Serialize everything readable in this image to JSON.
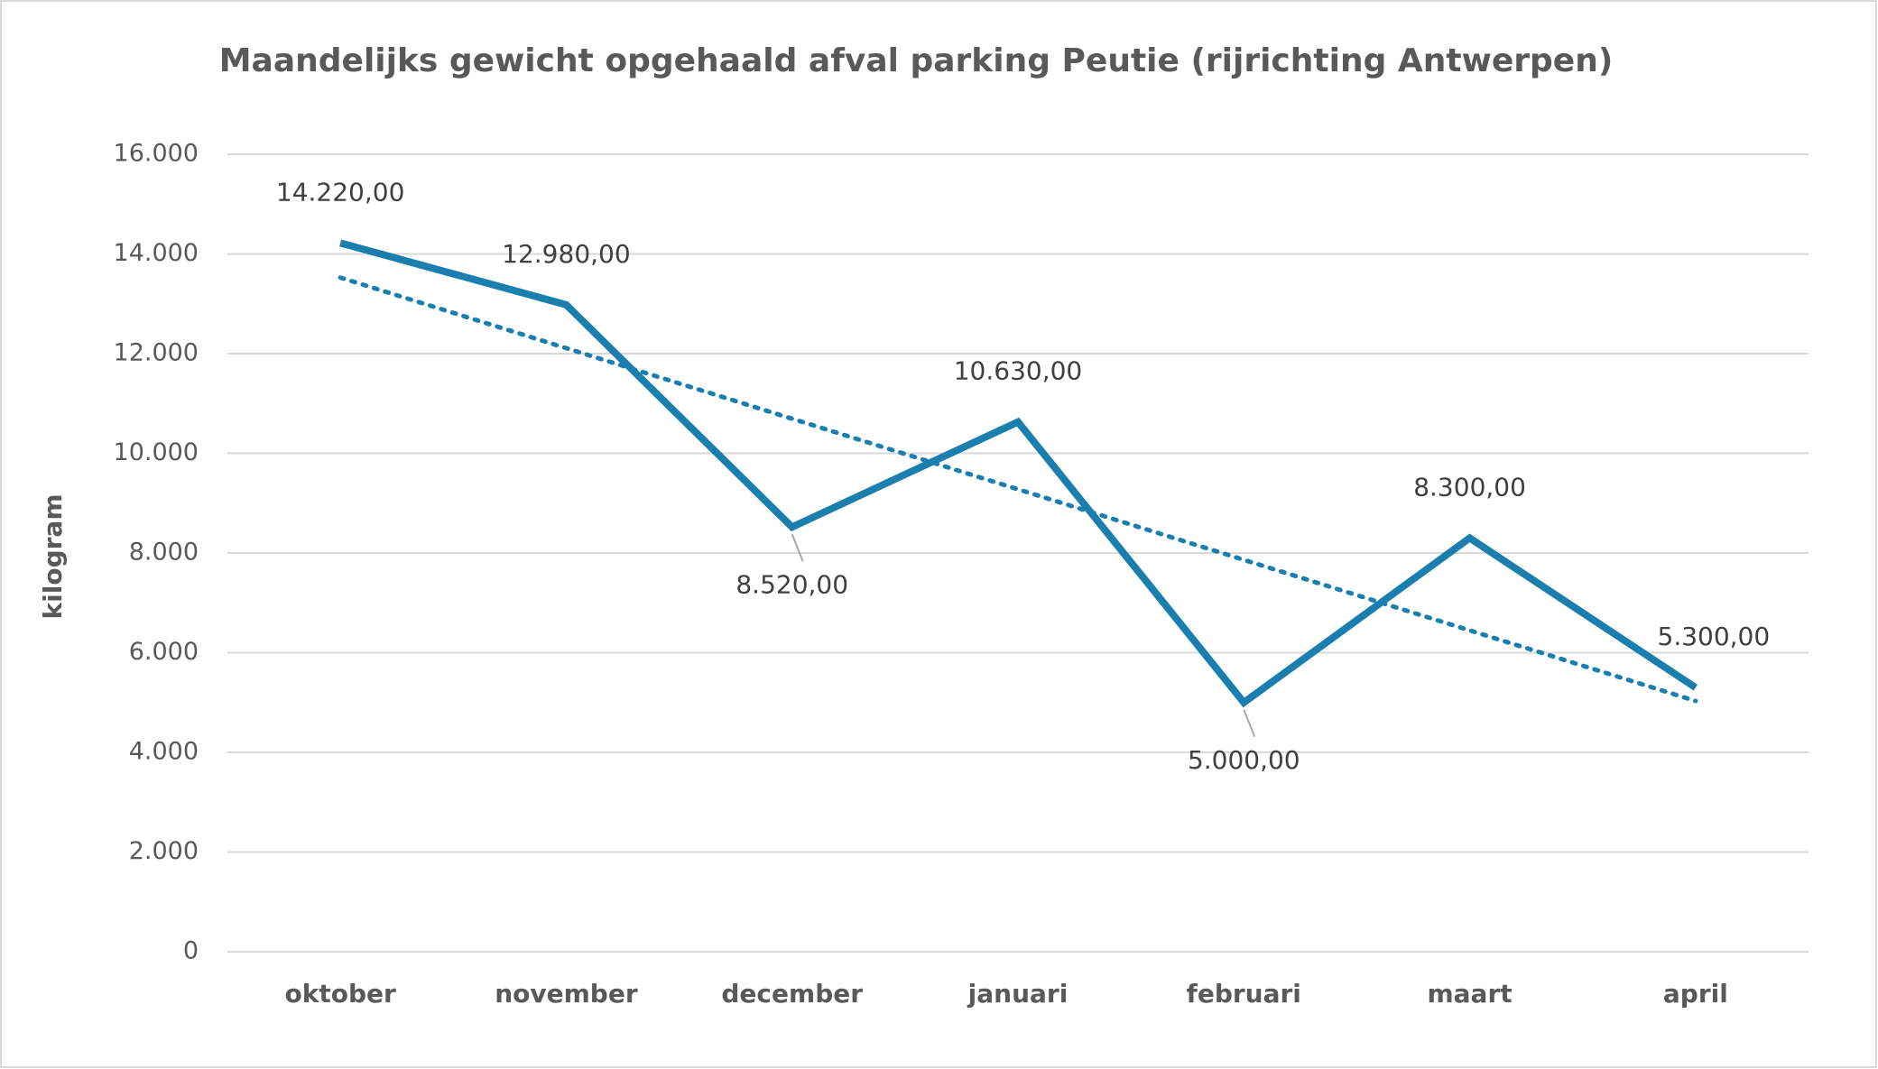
{
  "chart_data": {
    "type": "line",
    "title": "Maandelijks gewicht opgehaald afval parking Peutie (rijrichting Antwerpen)",
    "y_label": "kilogram",
    "categories": [
      "oktober",
      "november",
      "december",
      "januari",
      "februari",
      "maart",
      "april"
    ],
    "values": [
      14220,
      12980,
      8520,
      10630,
      5000,
      8300,
      5300
    ],
    "value_labels": [
      "14.220,00",
      "12.980,00",
      "8.520,00",
      "10.630,00",
      "5.000,00",
      "8.300,00",
      "5.300,00"
    ],
    "color": "#1a7fae",
    "trendline": "linear",
    "ylim": [
      0,
      16000
    ],
    "yticks": [
      0,
      {
        "value": 2000,
        "label": "2.000"
      },
      {
        "value": 4000,
        "label": "4.000"
      },
      {
        "value": 6000,
        "label": "6.000"
      },
      {
        "value": 8000,
        "label": "8.000"
      },
      {
        "value": 10000,
        "label": "10.000"
      },
      {
        "value": 12000,
        "label": "12.000"
      },
      {
        "value": 14000,
        "label": "14.000"
      },
      {
        "value": 16000,
        "label": "16.000"
      }
    ],
    "grid": true
  }
}
